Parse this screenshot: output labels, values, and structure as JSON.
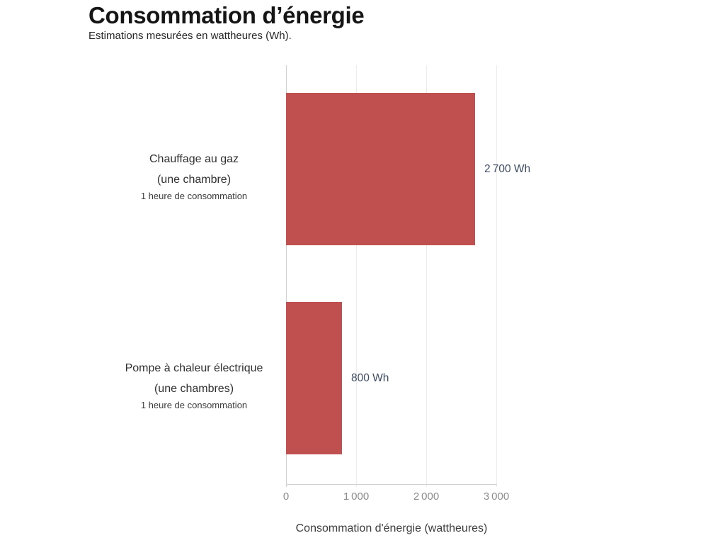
{
  "header": {
    "title": "Consommation d’énergie",
    "subtitle": "Estimations mesurées en wattheures (Wh)."
  },
  "colors": {
    "bar": "#bf504f",
    "value_label": "#3e4c63",
    "category_text": "#2f2f2f",
    "category_small_text": "#3b3b3b",
    "tick_label": "#8c8c8c",
    "axis_line": "#d2d2d2",
    "gridline": "#ededed",
    "title": "#151515",
    "subtitle": "#262626",
    "axis_title": "#3c3c3c",
    "background": "#ffffff"
  },
  "chart_data": {
    "type": "bar",
    "orientation": "horizontal",
    "title": "Consommation d’énergie",
    "subtitle": "Estimations mesurées en wattheures (Wh).",
    "xlabel": "Consommation d'énergie (wattheures)",
    "xlim": [
      0,
      3000
    ],
    "grid": true,
    "legend": "none",
    "categories": [
      {
        "name": "Chauffage au gaz",
        "qualifier": "(une chambre)",
        "note": "1 heure de consommation",
        "value": 2700,
        "value_label": "2 700 Wh"
      },
      {
        "name": "Pompe à chaleur électrique",
        "qualifier": "(une chambres)",
        "note": "1 heure de consommation",
        "value": 800,
        "value_label": "800 Wh"
      }
    ],
    "x_ticks": [
      {
        "value": 0,
        "label": "0"
      },
      {
        "value": 1000,
        "label": "1 000"
      },
      {
        "value": 2000,
        "label": "2 000"
      },
      {
        "value": 3000,
        "label": "3 000"
      }
    ]
  }
}
